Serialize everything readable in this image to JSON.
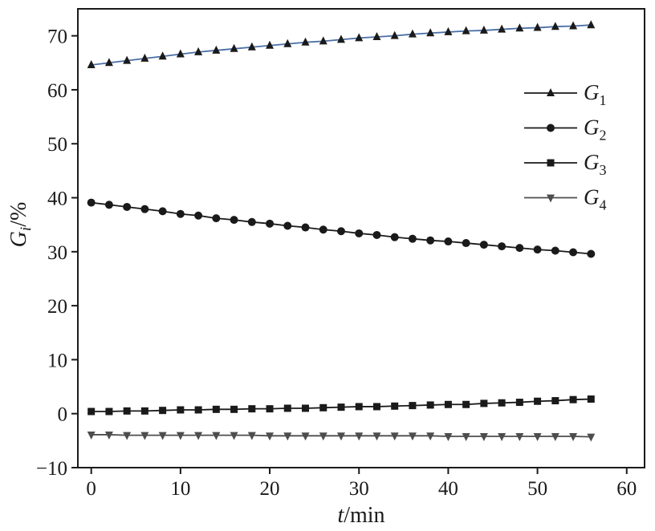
{
  "chart_data": {
    "type": "line",
    "xlabel_italic": "t",
    "xlabel_rest": "/min",
    "ylabel_italic": "G",
    "ylabel_sub": "i",
    "ylabel_rest": "/%",
    "xlim": [
      -1.5,
      62
    ],
    "ylim": [
      -10,
      75
    ],
    "xticks": [
      0,
      10,
      20,
      30,
      40,
      50,
      60
    ],
    "yticks": [
      -10,
      0,
      10,
      20,
      30,
      40,
      50,
      60,
      70
    ],
    "x": [
      0,
      2,
      4,
      6,
      8,
      10,
      12,
      14,
      16,
      18,
      20,
      22,
      24,
      26,
      28,
      30,
      32,
      34,
      36,
      38,
      40,
      42,
      44,
      46,
      48,
      50,
      52,
      54,
      56
    ],
    "legend_position": "upper-right",
    "grid": false,
    "series": [
      {
        "name": "G",
        "name_sub": "1",
        "marker": "triangle-up",
        "color": "#1a1a1a",
        "line_color": "#4a6fa5",
        "values": [
          64.6,
          65.0,
          65.4,
          65.8,
          66.2,
          66.6,
          67.0,
          67.3,
          67.6,
          67.9,
          68.2,
          68.5,
          68.8,
          69.0,
          69.3,
          69.6,
          69.8,
          70.0,
          70.3,
          70.5,
          70.7,
          70.9,
          71.0,
          71.2,
          71.4,
          71.5,
          71.7,
          71.8,
          72.0
        ]
      },
      {
        "name": "G",
        "name_sub": "2",
        "marker": "circle",
        "color": "#1a1a1a",
        "line_color": "#1a1a1a",
        "values": [
          39.1,
          38.7,
          38.3,
          37.9,
          37.5,
          37.0,
          36.7,
          36.2,
          35.9,
          35.5,
          35.2,
          34.8,
          34.5,
          34.1,
          33.8,
          33.4,
          33.1,
          32.7,
          32.4,
          32.1,
          31.9,
          31.6,
          31.3,
          31.0,
          30.7,
          30.4,
          30.2,
          29.9,
          29.6
        ]
      },
      {
        "name": "G",
        "name_sub": "3",
        "marker": "square",
        "color": "#1a1a1a",
        "line_color": "#1a1a1a",
        "values": [
          0.4,
          0.4,
          0.5,
          0.5,
          0.6,
          0.7,
          0.7,
          0.8,
          0.8,
          0.9,
          0.9,
          1.0,
          1.0,
          1.1,
          1.2,
          1.3,
          1.3,
          1.4,
          1.5,
          1.6,
          1.7,
          1.7,
          1.9,
          2.0,
          2.1,
          2.3,
          2.4,
          2.6,
          2.7
        ]
      },
      {
        "name": "G",
        "name_sub": "4",
        "marker": "triangle-down",
        "color": "#4d4d4d",
        "line_color": "#4d4d4d",
        "values": [
          -3.9,
          -3.9,
          -4.0,
          -4.0,
          -4.0,
          -4.0,
          -4.0,
          -4.0,
          -4.0,
          -4.0,
          -4.1,
          -4.1,
          -4.1,
          -4.1,
          -4.1,
          -4.1,
          -4.1,
          -4.1,
          -4.1,
          -4.1,
          -4.2,
          -4.2,
          -4.2,
          -4.2,
          -4.2,
          -4.2,
          -4.2,
          -4.2,
          -4.3
        ]
      }
    ]
  }
}
